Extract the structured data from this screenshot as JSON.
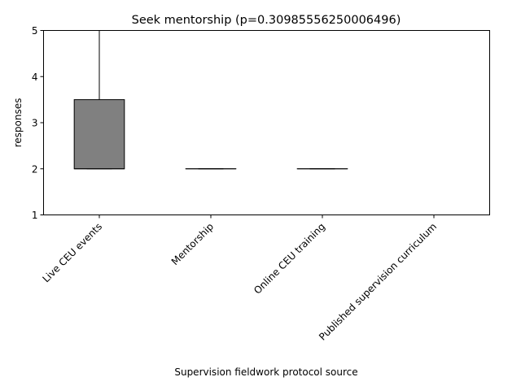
{
  "chart_data": {
    "type": "box",
    "title": "Seek mentorship (p=0.30985556250006496)",
    "xlabel": "Supervision fieldwork protocol source",
    "ylabel": "responses",
    "ylim": [
      1,
      5
    ],
    "yticks": [
      1,
      2,
      3,
      4,
      5
    ],
    "categories": [
      "Live CEU events",
      "Mentorship",
      "Online CEU training",
      "Published supervision curriculum"
    ],
    "boxes": [
      {
        "whisker_low": 2,
        "q1": 2,
        "median": 2,
        "q3": 3.5,
        "whisker_high": 5
      },
      {
        "whisker_low": 2,
        "q1": 2,
        "median": 2,
        "q3": 2,
        "whisker_high": 2
      },
      {
        "whisker_low": 2,
        "q1": 2,
        "median": 2,
        "q3": 2,
        "whisker_high": 2
      },
      {
        "whisker_low": 5,
        "q1": 5,
        "median": 5,
        "q3": 5,
        "whisker_high": 5
      }
    ],
    "grid": false,
    "colors": {
      "box_fill": "#808080",
      "box_edge": "#000000",
      "whisker": "#000000",
      "axis": "#000000"
    }
  }
}
